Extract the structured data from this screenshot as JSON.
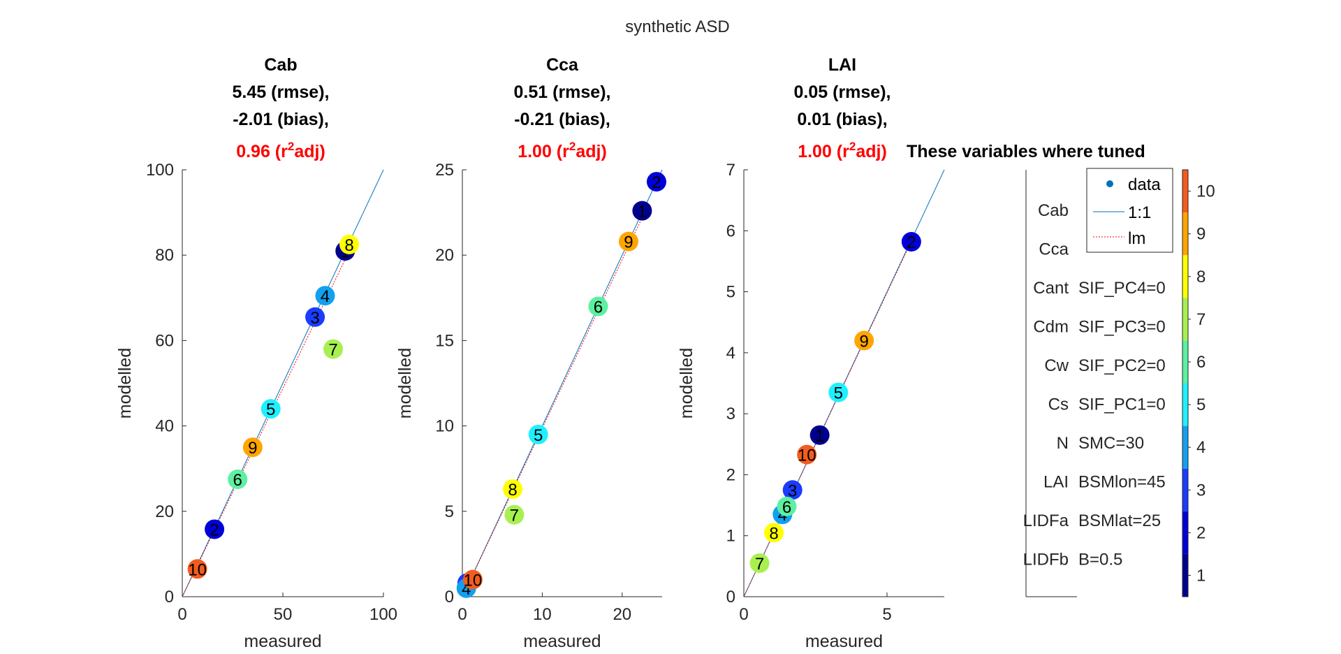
{
  "suptitle": "synthetic ASD",
  "note": "These variables where tuned",
  "chart_data": [
    {
      "type": "scatter",
      "name": "Cab",
      "stats": [
        "5.45 (rmse),",
        "-2.01 (bias),"
      ],
      "r2": {
        "value": "0.96 (r",
        "sup": "2",
        "tail": "adj)"
      },
      "xlabel": "measured",
      "ylabel": "modelled",
      "xlim": [
        0,
        100
      ],
      "ylim": [
        0,
        100
      ],
      "xticks": [
        0,
        50,
        100
      ],
      "yticks": [
        0,
        20,
        40,
        60,
        80,
        100
      ],
      "points": [
        {
          "id": 1,
          "x": 81,
          "y": 81
        },
        {
          "id": 2,
          "x": 16,
          "y": 15.8
        },
        {
          "id": 3,
          "x": 66,
          "y": 65.5
        },
        {
          "id": 4,
          "x": 71,
          "y": 70.5
        },
        {
          "id": 5,
          "x": 44,
          "y": 44
        },
        {
          "id": 6,
          "x": 27.5,
          "y": 27.5
        },
        {
          "id": 7,
          "x": 75,
          "y": 58
        },
        {
          "id": 8,
          "x": 83,
          "y": 82.5
        },
        {
          "id": 9,
          "x": 35,
          "y": 35
        },
        {
          "id": 10,
          "x": 7.5,
          "y": 6.5
        }
      ],
      "lm": {
        "x": [
          0,
          83
        ],
        "y": [
          0,
          81
        ]
      }
    },
    {
      "type": "scatter",
      "name": "Cca",
      "stats": [
        "0.51 (rmse),",
        "-0.21 (bias),"
      ],
      "r2": {
        "value": "1.00 (r",
        "sup": "2",
        "tail": "adj)"
      },
      "xlabel": "measured",
      "ylabel": "modelled",
      "xlim": [
        0,
        25
      ],
      "ylim": [
        0,
        25
      ],
      "xticks": [
        0,
        10,
        20
      ],
      "yticks": [
        0,
        5,
        10,
        15,
        20,
        25
      ],
      "points": [
        {
          "id": 1,
          "x": 22.5,
          "y": 22.6
        },
        {
          "id": 2,
          "x": 24.3,
          "y": 24.3
        },
        {
          "id": 3,
          "x": 0.6,
          "y": 0.8
        },
        {
          "id": 4,
          "x": 0.5,
          "y": 0.5
        },
        {
          "id": 5,
          "x": 9.5,
          "y": 9.5
        },
        {
          "id": 6,
          "x": 17,
          "y": 17
        },
        {
          "id": 7,
          "x": 6.5,
          "y": 4.8
        },
        {
          "id": 8,
          "x": 6.3,
          "y": 6.3
        },
        {
          "id": 9,
          "x": 20.8,
          "y": 20.8
        },
        {
          "id": 10,
          "x": 1.3,
          "y": 1.0
        }
      ],
      "lm": {
        "x": [
          0,
          22.5
        ],
        "y": [
          0,
          22.2
        ]
      }
    },
    {
      "type": "scatter",
      "name": "LAI",
      "stats": [
        "0.05 (rmse),",
        "0.01 (bias),"
      ],
      "r2": {
        "value": "1.00 (r",
        "sup": "2",
        "tail": "adj)"
      },
      "xlabel": "measured",
      "ylabel": "modelled",
      "xlim": [
        0,
        7
      ],
      "ylim": [
        0,
        7
      ],
      "xticks": [
        0,
        5
      ],
      "yticks": [
        0,
        1,
        2,
        3,
        4,
        5,
        6,
        7
      ],
      "points": [
        {
          "id": 1,
          "x": 2.65,
          "y": 2.65
        },
        {
          "id": 2,
          "x": 5.85,
          "y": 5.82
        },
        {
          "id": 3,
          "x": 1.7,
          "y": 1.75
        },
        {
          "id": 4,
          "x": 1.35,
          "y": 1.35
        },
        {
          "id": 5,
          "x": 3.3,
          "y": 3.35
        },
        {
          "id": 6,
          "x": 1.5,
          "y": 1.48
        },
        {
          "id": 7,
          "x": 0.55,
          "y": 0.55
        },
        {
          "id": 8,
          "x": 1.05,
          "y": 1.05
        },
        {
          "id": 9,
          "x": 4.2,
          "y": 4.2
        },
        {
          "id": 10,
          "x": 2.2,
          "y": 2.33
        }
      ],
      "lm": {
        "x": [
          0,
          5.85
        ],
        "y": [
          0,
          5.83
        ]
      }
    }
  ],
  "legend": [
    "data",
    "1:1",
    "lm"
  ],
  "panel": {
    "left": [
      "Cab",
      "Cca",
      "Cant",
      "Cdm",
      "Cw",
      "Cs",
      "N",
      "LAI",
      "LIDFa",
      "LIDFb"
    ],
    "right": [
      "SIF_PC4=0",
      "SIF_PC3=0",
      "SIF_PC2=0",
      "SIF_PC1=0",
      "SMC=30",
      "BSMlon=45",
      "BSMlat=25",
      "B=0.5"
    ]
  },
  "colorbar": {
    "ticks": [
      1,
      2,
      3,
      4,
      5,
      6,
      7,
      8,
      9,
      10
    ],
    "range": [
      0.5,
      10.5
    ]
  },
  "colors": {
    "1": "#00008f",
    "2": "#0000d8",
    "3": "#1a3cff",
    "4": "#12a0ef",
    "5": "#1ff0ff",
    "6": "#5cf0a0",
    "7": "#a8f050",
    "8": "#ffff00",
    "9": "#ffa500",
    "10": "#f25c1e",
    "oneToOne": "#0072bd",
    "lm": "#ff0000",
    "axis": "#262626"
  }
}
